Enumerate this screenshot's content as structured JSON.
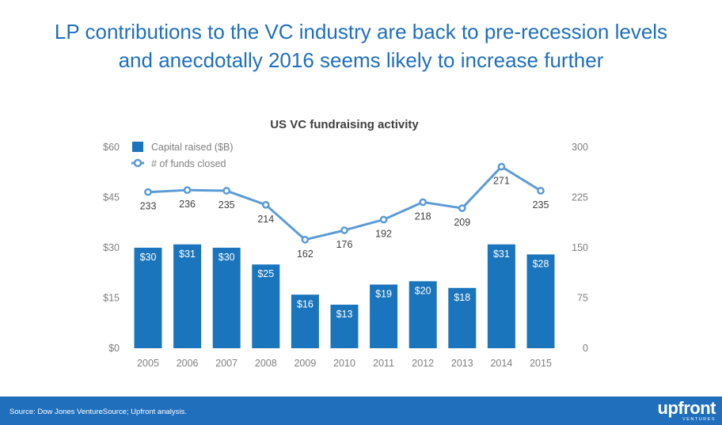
{
  "slide": {
    "title_line1": "LP contributions to the VC industry are back to pre-recession levels",
    "title_line2": "and anecdotally 2016 seems likely to increase further"
  },
  "footer": {
    "source": "Source: Dow Jones VentureSource; Upfront analysis.",
    "logo_word": "upfront",
    "logo_sub": "VENTURES"
  },
  "colors": {
    "brand": "#1f6fbd",
    "bar": "#1b75bc",
    "line": "#5b9bd5",
    "axis_text": "#7f7f7f",
    "label_text": "#404040"
  },
  "chart_data": {
    "type": "bar",
    "title": "US VC fundraising activity",
    "categories": [
      "2005",
      "2006",
      "2007",
      "2008",
      "2009",
      "2010",
      "2011",
      "2012",
      "2013",
      "2014",
      "2015"
    ],
    "series": [
      {
        "name": "Capital raised ($B)",
        "type": "bar",
        "axis": "left",
        "values": [
          30,
          31,
          30,
          25,
          16,
          13,
          19,
          20,
          18,
          31,
          28
        ],
        "labels": [
          "$30",
          "$31",
          "$30",
          "$25",
          "$16",
          "$13",
          "$19",
          "$20",
          "$18",
          "$31",
          "$28"
        ]
      },
      {
        "name": "# of funds closed",
        "type": "line",
        "axis": "right",
        "values": [
          233,
          236,
          235,
          214,
          162,
          176,
          192,
          218,
          209,
          271,
          235
        ],
        "labels": [
          "233",
          "236",
          "235",
          "214",
          "162",
          "176",
          "192",
          "218",
          "209",
          "271",
          "235"
        ]
      }
    ],
    "y_left": {
      "min": 0,
      "max": 60,
      "ticks": [
        0,
        15,
        30,
        45,
        60
      ],
      "tick_labels": [
        "$0",
        "$15",
        "$30",
        "$45",
        "$60"
      ]
    },
    "y_right": {
      "min": 0,
      "max": 300,
      "ticks": [
        0,
        75,
        150,
        225,
        300
      ],
      "tick_labels": [
        "0",
        "75",
        "150",
        "225",
        "300"
      ]
    },
    "legend_position": "top-left",
    "grid": false
  }
}
